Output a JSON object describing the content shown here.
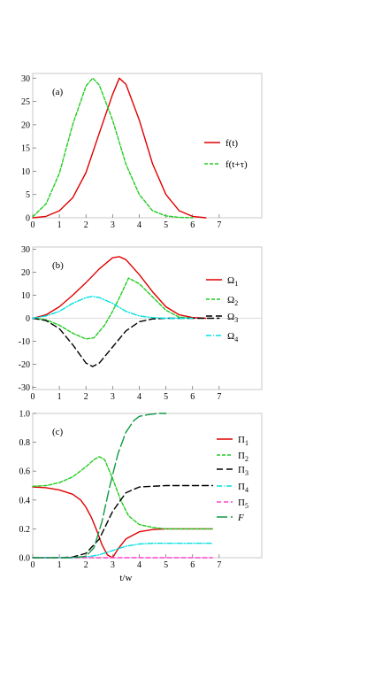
{
  "chart_data": [
    {
      "type": "line",
      "panel_label": "(a)",
      "xlim": [
        0,
        8.6
      ],
      "ylim": [
        0,
        31
      ],
      "xticks": [
        "0",
        "1",
        "2",
        "3",
        "4",
        "5",
        "6",
        "7"
      ],
      "yticks": [
        "0",
        "5",
        "10",
        "15",
        "20",
        "25",
        "30"
      ],
      "legend_position": "right",
      "series": [
        {
          "name": "f(t)",
          "color": "#e00000",
          "dash": "",
          "x": [
            0,
            0.5,
            1,
            1.5,
            2,
            2.5,
            3,
            3.25,
            3.5,
            4,
            4.5,
            5,
            5.5,
            6,
            6.5
          ],
          "y": [
            0,
            0.3,
            1.5,
            4.3,
            9.7,
            18.2,
            26.5,
            30,
            28.7,
            21,
            11.6,
            5,
            1.5,
            0.3,
            0
          ]
        },
        {
          "name": "f(t+τ)",
          "color": "#22cc22",
          "dash": "4,2",
          "x": [
            0,
            0.5,
            1,
            1.5,
            2,
            2.25,
            2.5,
            3,
            3.5,
            4,
            4.5,
            5,
            5.5,
            6
          ],
          "y": [
            0.2,
            3,
            9.5,
            20,
            28.3,
            30,
            28.5,
            21,
            11.5,
            5,
            1.5,
            0.4,
            0.1,
            0
          ]
        }
      ]
    },
    {
      "type": "line",
      "panel_label": "(b)",
      "xlim": [
        0,
        8.6
      ],
      "ylim": [
        -31,
        31
      ],
      "xticks": [
        "0",
        "1",
        "2",
        "3",
        "4",
        "5",
        "6",
        "7"
      ],
      "yticks": [
        "-30",
        "-20",
        "-10",
        "0",
        "10",
        "20",
        "30"
      ],
      "legend_position": "right",
      "series": [
        {
          "name": "Ω",
          "sub": "1",
          "color": "#e00000",
          "dash": "",
          "x": [
            0,
            0.5,
            1,
            1.5,
            2,
            2.5,
            3,
            3.25,
            3.5,
            4,
            4.5,
            5,
            5.5,
            6,
            6.5
          ],
          "y": [
            0,
            1.5,
            5,
            10,
            15.5,
            21.5,
            26.3,
            26.8,
            25.5,
            19,
            11.5,
            5,
            1.5,
            0.3,
            0
          ]
        },
        {
          "name": "Ω",
          "sub": "2",
          "color": "#22cc22",
          "dash": "4,2",
          "x": [
            0,
            0.5,
            1,
            1.5,
            2,
            2.3,
            2.7,
            3,
            3.3,
            3.6,
            4,
            4.5,
            5,
            5.5,
            6
          ],
          "y": [
            0,
            -0.7,
            -3,
            -6.5,
            -9,
            -8.5,
            -3,
            3,
            10,
            17.5,
            15,
            9.3,
            3.5,
            0.5,
            0
          ]
        },
        {
          "name": "Ω",
          "sub": "3",
          "color": "#000000",
          "dash": "7,4",
          "x": [
            0,
            0.5,
            1,
            1.5,
            2,
            2.25,
            2.5,
            3,
            3.5,
            4,
            4.5,
            5,
            5.5,
            6,
            6.5,
            7
          ],
          "y": [
            0,
            -1,
            -4.5,
            -11.5,
            -19.5,
            -21,
            -19.5,
            -12.5,
            -5.5,
            -1.5,
            -0.3,
            0,
            0,
            0,
            0,
            0
          ]
        },
        {
          "name": "Ω",
          "sub": "4",
          "color": "#00e0e0",
          "dash": "6,2,1,2",
          "x": [
            0,
            0.5,
            1,
            1.5,
            2,
            2.25,
            2.5,
            3,
            3.5,
            4,
            4.5,
            5,
            5.5,
            6
          ],
          "y": [
            0,
            1,
            3,
            6.5,
            9,
            9.5,
            9,
            6.5,
            3,
            1,
            0.3,
            0,
            0,
            0
          ]
        }
      ]
    },
    {
      "type": "line",
      "panel_label": "(c)",
      "xlim": [
        0,
        8.6
      ],
      "ylim": [
        0,
        1.0
      ],
      "xticks": [
        "0",
        "1",
        "2",
        "3",
        "4",
        "5",
        "6",
        "7"
      ],
      "yticks": [
        "0.0",
        "0.2",
        "0.4",
        "0.6",
        "0.8",
        "1.0"
      ],
      "xlabel": "t/w",
      "legend_position": "right",
      "series": [
        {
          "name": "Π",
          "sub": "1",
          "color": "#e00000",
          "dash": "",
          "x": [
            0,
            0.5,
            1,
            1.5,
            1.8,
            2,
            2.2,
            2.4,
            2.6,
            2.8,
            3,
            3.2,
            3.5,
            4,
            4.5,
            5,
            5.5,
            6,
            6.5,
            6.75
          ],
          "y": [
            0.49,
            0.485,
            0.47,
            0.44,
            0.4,
            0.35,
            0.28,
            0.19,
            0.09,
            0.02,
            0,
            0.06,
            0.13,
            0.18,
            0.195,
            0.2,
            0.2,
            0.2,
            0.2,
            0.2
          ]
        },
        {
          "name": "Π",
          "sub": "2",
          "color": "#22cc22",
          "dash": "4,2",
          "x": [
            0,
            0.5,
            1,
            1.5,
            2,
            2.3,
            2.5,
            2.7,
            3,
            3.3,
            3.6,
            4,
            4.5,
            5,
            5.5,
            6,
            6.5,
            6.75
          ],
          "y": [
            0.495,
            0.5,
            0.52,
            0.56,
            0.63,
            0.68,
            0.7,
            0.68,
            0.55,
            0.4,
            0.29,
            0.23,
            0.21,
            0.2,
            0.2,
            0.2,
            0.2,
            0.2
          ]
        },
        {
          "name": "Π",
          "sub": "3",
          "color": "#000000",
          "dash": "7,4",
          "x": [
            0,
            1,
            1.5,
            2,
            2.5,
            3,
            3.5,
            4,
            4.5,
            5,
            6,
            6.75
          ],
          "y": [
            0,
            0,
            0.005,
            0.03,
            0.13,
            0.32,
            0.45,
            0.49,
            0.495,
            0.5,
            0.5,
            0.5
          ]
        },
        {
          "name": "Π",
          "sub": "4",
          "color": "#00e0e0",
          "dash": "6,2,1,2",
          "x": [
            0,
            1.5,
            2,
            2.5,
            3,
            3.5,
            4,
            4.5,
            5,
            6,
            6.75
          ],
          "y": [
            0,
            0,
            0.005,
            0.02,
            0.05,
            0.08,
            0.095,
            0.1,
            0.1,
            0.1,
            0.1
          ]
        },
        {
          "name": "Π",
          "sub": "5",
          "color": "#ff44cc",
          "dash": "5,3",
          "x": [
            0,
            6.75
          ],
          "y": [
            0,
            0
          ]
        },
        {
          "name": "F",
          "color": "#119944",
          "dash": "12,4",
          "x": [
            0,
            1.5,
            2,
            2.3,
            2.6,
            2.9,
            3.2,
            3.5,
            3.8,
            4,
            4.3,
            4.7,
            5
          ],
          "y": [
            0,
            0,
            0.01,
            0.07,
            0.25,
            0.5,
            0.72,
            0.87,
            0.95,
            0.98,
            0.99,
            1.0,
            1.0
          ]
        }
      ]
    }
  ]
}
